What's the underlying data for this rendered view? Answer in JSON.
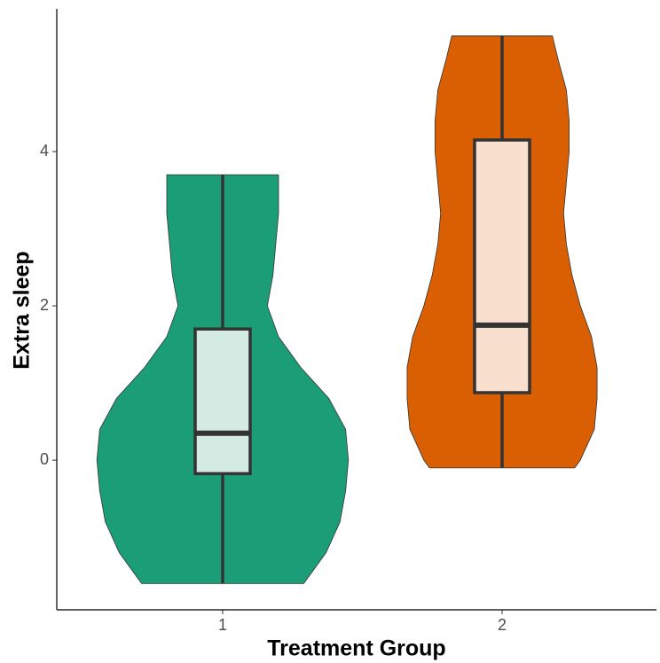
{
  "chart_data": {
    "type": "violin",
    "x_label": "Treatment Group",
    "y_label": "Extra sleep",
    "categories": [
      "1",
      "2"
    ],
    "ylim": [
      -1.94,
      5.85
    ],
    "yticks": [
      0,
      2,
      4
    ],
    "groups": [
      {
        "color": "#1b9e77",
        "box_fill": "#d4ebe3",
        "min": -1.6,
        "q1": -0.175,
        "median": 0.35,
        "q3": 1.7,
        "max": 3.7,
        "density": {
          "y": [
            -1.6,
            -1.2,
            -0.8,
            -0.4,
            0.0,
            0.4,
            0.8,
            1.2,
            1.6,
            2.0,
            2.4,
            2.8,
            3.2,
            3.7
          ],
          "half_width": [
            0.29,
            0.37,
            0.42,
            0.44,
            0.45,
            0.44,
            0.38,
            0.28,
            0.2,
            0.16,
            0.18,
            0.19,
            0.2,
            0.2
          ]
        }
      },
      {
        "color": "#d95f02",
        "box_fill": "#f8dfce",
        "min": -0.1,
        "q1": 0.875,
        "median": 1.75,
        "q3": 4.15,
        "max": 5.5,
        "density": {
          "y": [
            -0.1,
            0.0,
            0.4,
            0.8,
            1.2,
            1.6,
            2.0,
            2.4,
            2.8,
            3.2,
            3.6,
            4.0,
            4.4,
            4.8,
            5.2,
            5.5
          ],
          "half_width": [
            0.26,
            0.28,
            0.33,
            0.34,
            0.34,
            0.32,
            0.28,
            0.25,
            0.23,
            0.22,
            0.23,
            0.24,
            0.24,
            0.23,
            0.2,
            0.18
          ]
        }
      }
    ]
  }
}
